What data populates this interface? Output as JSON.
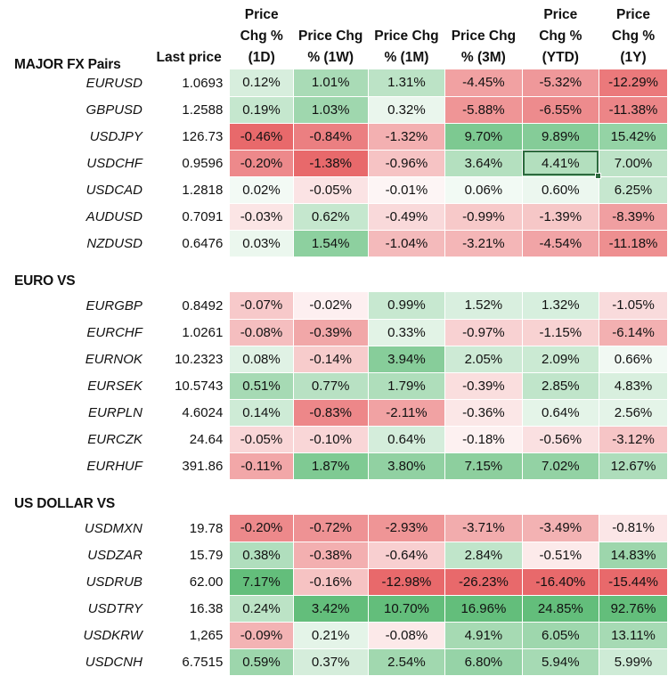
{
  "columns": [
    "Last price",
    "Price Chg % (1D)",
    "Price Chg % (1W)",
    "Price Chg % (1M)",
    "Price Chg % (3M)",
    "Price Chg % (YTD)",
    "Price Chg % (1Y)"
  ],
  "header_lines": [
    [
      "Last price"
    ],
    [
      "Price",
      "Chg %",
      "(1D)"
    ],
    [
      "Price Chg",
      "% (1W)"
    ],
    [
      "Price Chg",
      "% (1M)"
    ],
    [
      "Price Chg",
      "% (3M)"
    ],
    [
      "Price",
      "Chg %",
      "(YTD)"
    ],
    [
      "Price",
      "Chg %",
      "(1Y)"
    ]
  ],
  "selected_cell": {
    "section": 0,
    "row": 3,
    "col": 4
  },
  "colors": {
    "positive": "#63be7b",
    "negative": "#e8696b",
    "neutral": "#ffffff",
    "selection": "#2d6a3e"
  },
  "sections": [
    {
      "title": "MAJOR FX Pairs",
      "rows": [
        {
          "symbol": "EURUSD",
          "last": "1.0693",
          "changes": [
            "0.12%",
            "1.01%",
            "1.31%",
            "-4.45%",
            "-5.32%",
            "-12.29%"
          ]
        },
        {
          "symbol": "GBPUSD",
          "last": "1.2588",
          "changes": [
            "0.19%",
            "1.03%",
            "0.32%",
            "-5.88%",
            "-6.55%",
            "-11.38%"
          ]
        },
        {
          "symbol": "USDJPY",
          "last": "126.73",
          "changes": [
            "-0.46%",
            "-0.84%",
            "-1.32%",
            "9.70%",
            "9.89%",
            "15.42%"
          ]
        },
        {
          "symbol": "USDCHF",
          "last": "0.9596",
          "changes": [
            "-0.20%",
            "-1.38%",
            "-0.96%",
            "3.64%",
            "4.41%",
            "7.00%"
          ]
        },
        {
          "symbol": "USDCAD",
          "last": "1.2818",
          "changes": [
            "0.02%",
            "-0.05%",
            "-0.01%",
            "0.06%",
            "0.60%",
            "6.25%"
          ]
        },
        {
          "symbol": "AUDUSD",
          "last": "0.7091",
          "changes": [
            "-0.03%",
            "0.62%",
            "-0.49%",
            "-0.99%",
            "-1.39%",
            "-8.39%"
          ]
        },
        {
          "symbol": "NZDUSD",
          "last": "0.6476",
          "changes": [
            "0.03%",
            "1.54%",
            "-1.04%",
            "-3.21%",
            "-4.54%",
            "-11.18%"
          ]
        }
      ]
    },
    {
      "title": "EURO VS",
      "rows": [
        {
          "symbol": "EURGBP",
          "last": "0.8492",
          "changes": [
            "-0.07%",
            "-0.02%",
            "0.99%",
            "1.52%",
            "1.32%",
            "-1.05%"
          ]
        },
        {
          "symbol": "EURCHF",
          "last": "1.0261",
          "changes": [
            "-0.08%",
            "-0.39%",
            "0.33%",
            "-0.97%",
            "-1.15%",
            "-6.14%"
          ]
        },
        {
          "symbol": "EURNOK",
          "last": "10.2323",
          "changes": [
            "0.08%",
            "-0.14%",
            "3.94%",
            "2.05%",
            "2.09%",
            "0.66%"
          ]
        },
        {
          "symbol": "EURSEK",
          "last": "10.5743",
          "changes": [
            "0.51%",
            "0.77%",
            "1.79%",
            "-0.39%",
            "2.85%",
            "4.83%"
          ]
        },
        {
          "symbol": "EURPLN",
          "last": "4.6024",
          "changes": [
            "0.14%",
            "-0.83%",
            "-2.11%",
            "-0.36%",
            "0.64%",
            "2.56%"
          ]
        },
        {
          "symbol": "EURCZK",
          "last": "24.64",
          "changes": [
            "-0.05%",
            "-0.10%",
            "0.64%",
            "-0.18%",
            "-0.56%",
            "-3.12%"
          ]
        },
        {
          "symbol": "EURHUF",
          "last": "391.86",
          "changes": [
            "-0.11%",
            "1.87%",
            "3.80%",
            "7.15%",
            "7.02%",
            "12.67%"
          ]
        }
      ]
    },
    {
      "title": "US DOLLAR VS",
      "rows": [
        {
          "symbol": "USDMXN",
          "last": "19.78",
          "changes": [
            "-0.20%",
            "-0.72%",
            "-2.93%",
            "-3.71%",
            "-3.49%",
            "-0.81%"
          ]
        },
        {
          "symbol": "USDZAR",
          "last": "15.79",
          "changes": [
            "0.38%",
            "-0.38%",
            "-0.64%",
            "2.84%",
            "-0.51%",
            "14.83%"
          ]
        },
        {
          "symbol": "USDRUB",
          "last": "62.00",
          "changes": [
            "7.17%",
            "-0.16%",
            "-12.98%",
            "-26.23%",
            "-16.40%",
            "-15.44%"
          ]
        },
        {
          "symbol": "USDTRY",
          "last": "16.38",
          "changes": [
            "0.24%",
            "3.42%",
            "10.70%",
            "16.96%",
            "24.85%",
            "92.76%"
          ]
        },
        {
          "symbol": "USDKRW",
          "last": "1,265",
          "changes": [
            "-0.09%",
            "0.21%",
            "-0.08%",
            "4.91%",
            "6.05%",
            "13.11%"
          ]
        },
        {
          "symbol": "USDCNH",
          "last": "6.7515",
          "changes": [
            "0.59%",
            "0.37%",
            "2.54%",
            "6.80%",
            "5.94%",
            "5.99%"
          ]
        }
      ]
    }
  ]
}
